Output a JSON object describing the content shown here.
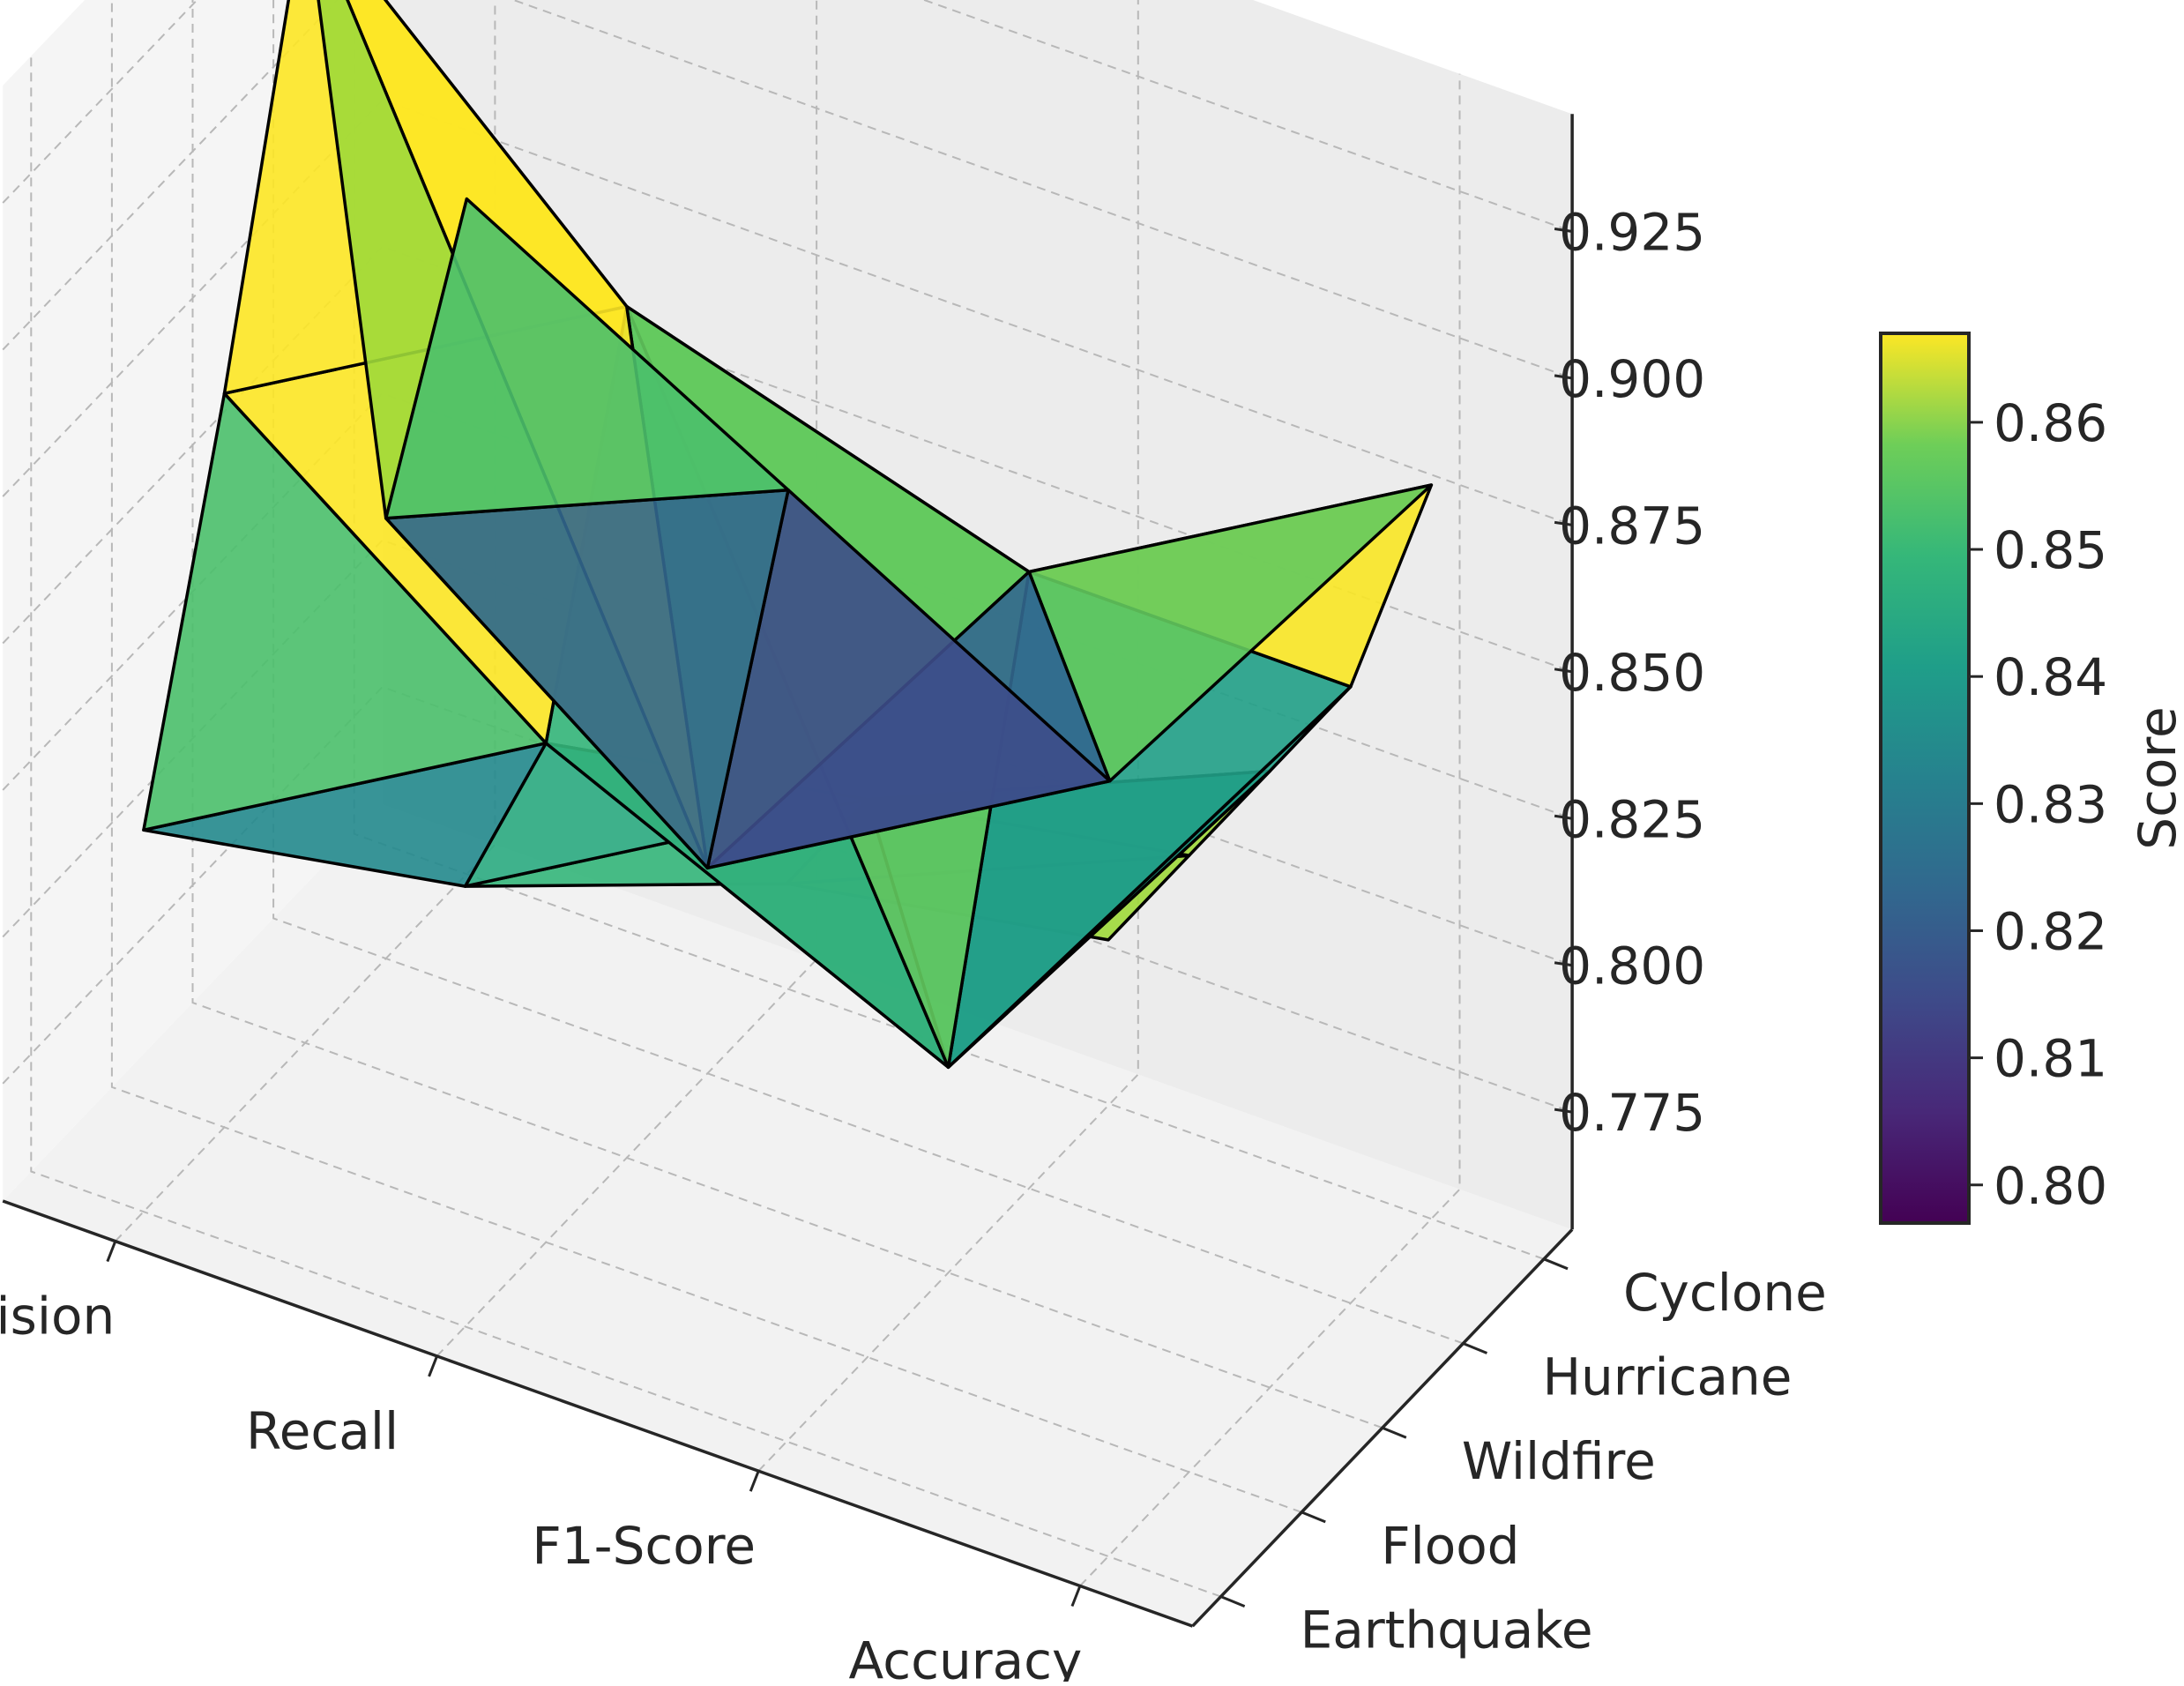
{
  "chart_data": {
    "type": "3d-surface",
    "title": "",
    "xlabel": "",
    "ylabel": "",
    "zlabel": "",
    "x_categories": [
      "Precision",
      "Recall",
      "F1-Score",
      "Accuracy"
    ],
    "y_categories": [
      "Earthquake",
      "Flood",
      "Wildfire",
      "Hurricane",
      "Cyclone"
    ],
    "z_ticks": [
      "0.775",
      "0.800",
      "0.825",
      "0.850",
      "0.875",
      "0.900",
      "0.925"
    ],
    "zlim": [
      0.755,
      0.945
    ],
    "values": [
      [
        0.82,
        0.83,
        0.85,
        0.86
      ],
      [
        0.88,
        0.84,
        0.85,
        0.86
      ],
      [
        0.95,
        0.9,
        0.79,
        0.86
      ],
      [
        0.83,
        0.79,
        0.86,
        0.86
      ],
      [
        0.87,
        0.84,
        0.81,
        0.88
      ]
    ],
    "colormap": "viridis",
    "colorbar": {
      "label": "Score",
      "min": 0.797,
      "max": 0.867,
      "ticks": [
        "0.80",
        "0.81",
        "0.82",
        "0.83",
        "0.84",
        "0.85",
        "0.86"
      ]
    },
    "grid": true
  }
}
